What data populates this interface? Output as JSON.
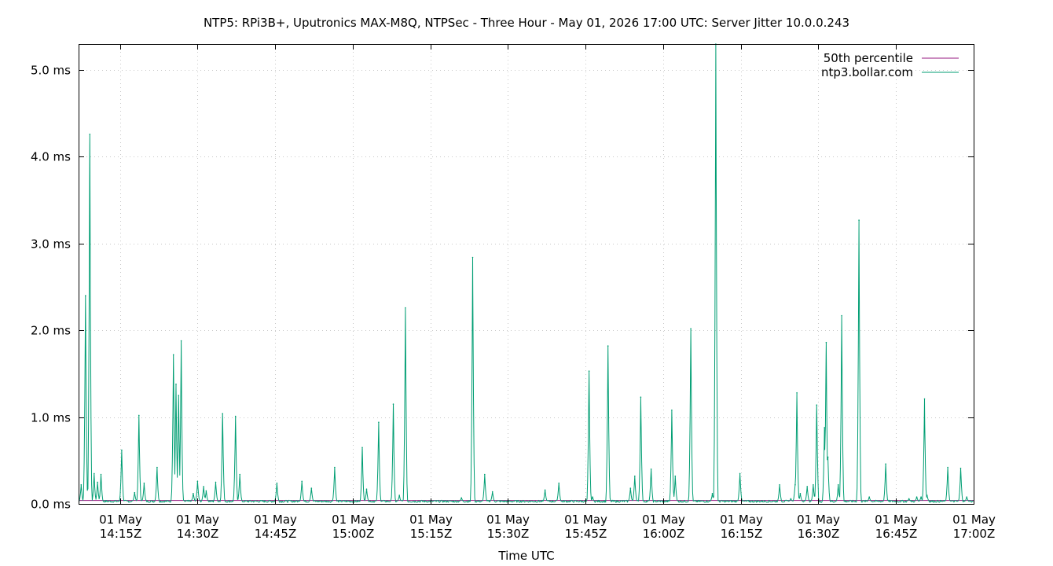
{
  "chart_data": {
    "type": "line",
    "title": "NTP5: RPi3B+, Uputronics MAX-M8Q, NTPSec - Three Hour - May 01, 2026 17:00 UTC: Server Jitter 10.0.0.243",
    "xlabel": "Time UTC",
    "ylabel": "",
    "x_range": [
      "2026-05-01T14:07Z",
      "2026-05-01T17:00Z"
    ],
    "ylim": [
      0,
      5.3
    ],
    "y_unit": "ms",
    "grid": true,
    "legend_position": "top-right",
    "yticks": [
      {
        "value": 0.0,
        "label": "0.0 ms"
      },
      {
        "value": 1.0,
        "label": "1.0 ms"
      },
      {
        "value": 2.0,
        "label": "2.0 ms"
      },
      {
        "value": 3.0,
        "label": "3.0 ms"
      },
      {
        "value": 4.0,
        "label": "4.0 ms"
      },
      {
        "value": 5.0,
        "label": "5.0 ms"
      }
    ],
    "xticks": [
      {
        "time": "14:15",
        "line1": "01 May",
        "line2": "14:15Z"
      },
      {
        "time": "14:30",
        "line1": "01 May",
        "line2": "14:30Z"
      },
      {
        "time": "14:45",
        "line1": "01 May",
        "line2": "14:45Z"
      },
      {
        "time": "15:00",
        "line1": "01 May",
        "line2": "15:00Z"
      },
      {
        "time": "15:15",
        "line1": "01 May",
        "line2": "15:15Z"
      },
      {
        "time": "15:30",
        "line1": "01 May",
        "line2": "15:30Z"
      },
      {
        "time": "15:45",
        "line1": "01 May",
        "line2": "15:45Z"
      },
      {
        "time": "16:00",
        "line1": "01 May",
        "line2": "16:00Z"
      },
      {
        "time": "16:15",
        "line1": "01 May",
        "line2": "16:15Z"
      },
      {
        "time": "16:30",
        "line1": "01 May",
        "line2": "16:30Z"
      },
      {
        "time": "16:45",
        "line1": "01 May",
        "line2": "16:45Z"
      },
      {
        "time": "17:00",
        "line1": "01 May",
        "line2": "17:00Z"
      }
    ],
    "series": [
      {
        "name": "50th percentile",
        "color": "#94177f",
        "style": "constant",
        "value": 0.04
      },
      {
        "name": "ntp3.bollar.com",
        "color": "#009e73",
        "style": "spikes",
        "baseline": 0.03,
        "peaks": [
          {
            "t": "14:07:30",
            "v": 0.22
          },
          {
            "t": "14:08:20",
            "v": 2.4
          },
          {
            "t": "14:09:10",
            "v": 4.26
          },
          {
            "t": "14:10:00",
            "v": 0.35
          },
          {
            "t": "14:10:40",
            "v": 0.25
          },
          {
            "t": "14:11:20",
            "v": 0.34
          },
          {
            "t": "14:15:20",
            "v": 0.62
          },
          {
            "t": "14:17:50",
            "v": 0.13
          },
          {
            "t": "14:18:40",
            "v": 1.02
          },
          {
            "t": "14:19:40",
            "v": 0.24
          },
          {
            "t": "14:22:10",
            "v": 0.42
          },
          {
            "t": "14:25:20",
            "v": 1.72
          },
          {
            "t": "14:25:50",
            "v": 1.38
          },
          {
            "t": "14:26:20",
            "v": 1.25
          },
          {
            "t": "14:26:50",
            "v": 1.88
          },
          {
            "t": "14:29:10",
            "v": 0.12
          },
          {
            "t": "14:30:00",
            "v": 0.26
          },
          {
            "t": "14:31:10",
            "v": 0.2
          },
          {
            "t": "14:31:40",
            "v": 0.15
          },
          {
            "t": "14:33:30",
            "v": 0.25
          },
          {
            "t": "14:34:50",
            "v": 1.04
          },
          {
            "t": "14:37:20",
            "v": 1.01
          },
          {
            "t": "14:38:10",
            "v": 0.34
          },
          {
            "t": "14:45:20",
            "v": 0.24
          },
          {
            "t": "14:50:10",
            "v": 0.26
          },
          {
            "t": "14:52:00",
            "v": 0.18
          },
          {
            "t": "14:56:30",
            "v": 0.42
          },
          {
            "t": "15:01:50",
            "v": 0.65
          },
          {
            "t": "15:02:40",
            "v": 0.17
          },
          {
            "t": "15:05:00",
            "v": 0.94
          },
          {
            "t": "15:07:50",
            "v": 1.15
          },
          {
            "t": "15:09:00",
            "v": 0.1
          },
          {
            "t": "15:10:10",
            "v": 2.26
          },
          {
            "t": "15:21:00",
            "v": 0.07
          },
          {
            "t": "15:23:10",
            "v": 2.84
          },
          {
            "t": "15:25:30",
            "v": 0.34
          },
          {
            "t": "15:27:00",
            "v": 0.14
          },
          {
            "t": "15:37:10",
            "v": 0.16
          },
          {
            "t": "15:39:50",
            "v": 0.24
          },
          {
            "t": "15:45:40",
            "v": 1.53
          },
          {
            "t": "15:46:20",
            "v": 0.08
          },
          {
            "t": "15:49:20",
            "v": 1.82
          },
          {
            "t": "15:53:40",
            "v": 0.18
          },
          {
            "t": "15:54:30",
            "v": 0.32
          },
          {
            "t": "15:55:40",
            "v": 1.23
          },
          {
            "t": "15:57:40",
            "v": 0.4
          },
          {
            "t": "16:01:40",
            "v": 1.08
          },
          {
            "t": "16:02:20",
            "v": 0.32
          },
          {
            "t": "16:05:20",
            "v": 2.02
          },
          {
            "t": "16:09:30",
            "v": 0.12
          },
          {
            "t": "16:10:10",
            "v": 5.3
          },
          {
            "t": "16:14:50",
            "v": 0.35
          },
          {
            "t": "16:22:30",
            "v": 0.22
          },
          {
            "t": "16:24:40",
            "v": 0.06
          },
          {
            "t": "16:25:30",
            "v": 0.22
          },
          {
            "t": "16:25:50",
            "v": 1.28
          },
          {
            "t": "16:26:30",
            "v": 0.12
          },
          {
            "t": "16:27:50",
            "v": 0.2
          },
          {
            "t": "16:29:00",
            "v": 0.22
          },
          {
            "t": "16:29:40",
            "v": 1.14
          },
          {
            "t": "16:31:10",
            "v": 0.88
          },
          {
            "t": "16:31:30",
            "v": 1.86
          },
          {
            "t": "16:31:50",
            "v": 0.54
          },
          {
            "t": "16:33:50",
            "v": 0.22
          },
          {
            "t": "16:34:30",
            "v": 2.17
          },
          {
            "t": "16:37:50",
            "v": 3.27
          },
          {
            "t": "16:39:50",
            "v": 0.08
          },
          {
            "t": "16:43:00",
            "v": 0.46
          },
          {
            "t": "16:47:30",
            "v": 0.06
          },
          {
            "t": "16:49:00",
            "v": 0.08
          },
          {
            "t": "16:49:50",
            "v": 0.08
          },
          {
            "t": "16:50:30",
            "v": 1.21
          },
          {
            "t": "16:51:00",
            "v": 0.1
          },
          {
            "t": "16:55:00",
            "v": 0.42
          },
          {
            "t": "16:57:30",
            "v": 0.41
          },
          {
            "t": "16:58:40",
            "v": 0.08
          }
        ]
      }
    ]
  }
}
